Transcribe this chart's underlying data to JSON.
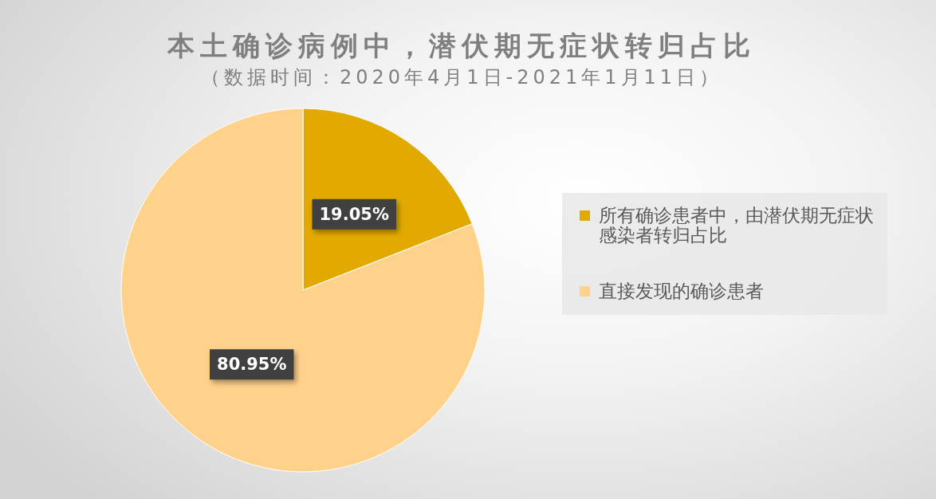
{
  "chart_data": {
    "type": "pie",
    "title": "本土确诊病例中，潜伏期无症状转归占比",
    "subtitle": "（数据时间：2020年4月1日-2021年1月11日）",
    "categories": [
      "所有确诊患者中，由潜伏期无症状感染者转归占比",
      "直接发现的确诊患者"
    ],
    "values": [
      19.05,
      80.95
    ],
    "colors": [
      "#e2aa00",
      "#ffd28c"
    ],
    "value_labels": [
      "19.05%",
      "80.95%"
    ],
    "legend": "right"
  }
}
